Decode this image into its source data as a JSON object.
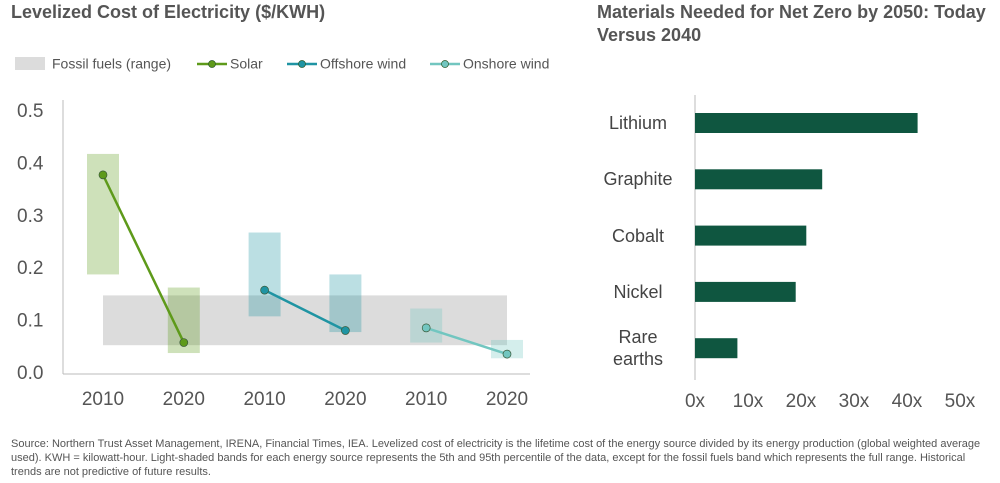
{
  "chart_data": [
    {
      "type": "line",
      "title": "Levelized Cost of Electricity ($/KWH)",
      "categories": [
        "2010",
        "2020",
        "2010",
        "2020",
        "2010",
        "2020"
      ],
      "fossil_range": {
        "name": "Fossil fuels (range)",
        "low": 0.055,
        "high": 0.15,
        "color": "#dcdcdc"
      },
      "series": [
        {
          "name": "Solar",
          "color": "#5e9a1a",
          "values": [
            0.38,
            0.06,
            null,
            null,
            null,
            null
          ],
          "ranges": [
            [
              0.19,
              0.42
            ],
            [
              0.04,
              0.165
            ],
            null,
            null,
            null,
            null
          ]
        },
        {
          "name": "Offshore wind",
          "color": "#1f94a3",
          "values": [
            null,
            null,
            0.16,
            0.083,
            null,
            null
          ],
          "ranges": [
            null,
            null,
            [
              0.11,
              0.27
            ],
            [
              0.08,
              0.19
            ],
            null,
            null
          ]
        },
        {
          "name": "Onshore wind",
          "color": "#72c6c0",
          "values": [
            null,
            null,
            null,
            null,
            0.088,
            0.038
          ],
          "ranges": [
            null,
            null,
            null,
            null,
            [
              0.06,
              0.125
            ],
            [
              0.03,
              0.065
            ]
          ]
        }
      ],
      "ylim": [
        0,
        0.5
      ],
      "yticks": [
        {
          "value": 0,
          "label": "0.0"
        },
        0.1,
        0.2,
        0.3,
        0.4,
        0.5
      ],
      "grid": false
    },
    {
      "type": "bar",
      "orientation": "horizontal",
      "title": "Materials Needed for Net Zero by 2050: Today Versus 2040",
      "categories": [
        "Lithium",
        "Graphite",
        "Cobalt",
        "Nickel",
        "Rare earths"
      ],
      "values": [
        42,
        24,
        21,
        19,
        8
      ],
      "color": "#0f5640",
      "xlim": [
        0,
        50
      ],
      "xticks": [
        {
          "value": 0,
          "label": "0x"
        },
        {
          "value": 10,
          "label": "10x"
        },
        {
          "value": 20,
          "label": "20x"
        },
        {
          "value": 30,
          "label": "30x"
        },
        {
          "value": 40,
          "label": "40x"
        },
        {
          "value": 50,
          "label": "50x"
        }
      ],
      "grid": false
    }
  ],
  "footnote": "Source: Northern Trust Asset Management, IRENA, Financial Times, IEA. Levelized cost of electricity is the lifetime cost of the energy source divided by its energy production (global weighted average used). KWH = kilowatt-hour. Light-shaded bands for each energy source represents the 5th and 95th percentile of the data, except for the fossil fuels band which represents the full range. Historical trends are not predictive of future results."
}
